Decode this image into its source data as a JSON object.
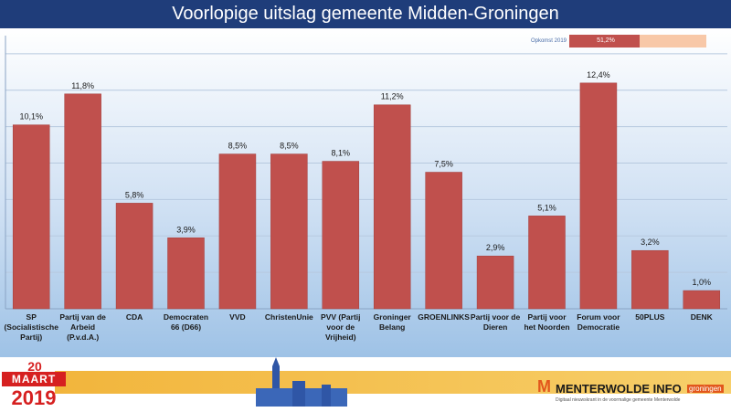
{
  "header": {
    "title": "Voorlopige uitslag gemeente Midden-Groningen"
  },
  "turnout": {
    "label": "Opkomst 2019",
    "value_text": "51,2%",
    "value": 0.512
  },
  "footer": {
    "date_day": "20",
    "date_month": "MAART",
    "date_year": "2019",
    "brand": "MENTERWOLDE INFO",
    "brand_subtitle": "Digitaal nieuwskrant in de voormalige gemeente Menterwolde",
    "brand_tag": "groningen",
    "brand_mark": "M"
  },
  "colors": {
    "bar": "#c0504d",
    "title_bar": "#1f3d7a",
    "accent": "#f2b53c"
  },
  "chart_data": {
    "type": "bar",
    "title": "Voorlopige uitslag gemeente Midden-Groningen",
    "ylim": [
      0,
      15
    ],
    "grid": true,
    "categories": [
      [
        "SP",
        "(Socialistische",
        "Partij)"
      ],
      [
        "Partij van de",
        "Arbeid",
        "(P.v.d.A.)"
      ],
      [
        "CDA"
      ],
      [
        "Democraten",
        "66 (D66)"
      ],
      [
        "VVD"
      ],
      [
        "ChristenUnie"
      ],
      [
        "PVV (Partij",
        "voor de",
        "Vrijheid)"
      ],
      [
        "Groninger",
        "Belang"
      ],
      [
        "GROENLINKS"
      ],
      [
        "Partij voor de",
        "Dieren"
      ],
      [
        "Partij voor",
        "het Noorden"
      ],
      [
        "Forum voor",
        "Democratie"
      ],
      [
        "50PLUS"
      ],
      [
        "DENK"
      ]
    ],
    "values": [
      10.1,
      11.8,
      5.8,
      3.9,
      8.5,
      8.5,
      8.1,
      11.2,
      7.5,
      2.9,
      5.1,
      12.4,
      3.2,
      1.0
    ],
    "labels": [
      "10,1%",
      "11,8%",
      "5,8%",
      "3,9%",
      "8,5%",
      "8,5%",
      "8,1%",
      "11,2%",
      "7,5%",
      "2,9%",
      "5,1%",
      "12,4%",
      "3,2%",
      "1,0%"
    ]
  }
}
